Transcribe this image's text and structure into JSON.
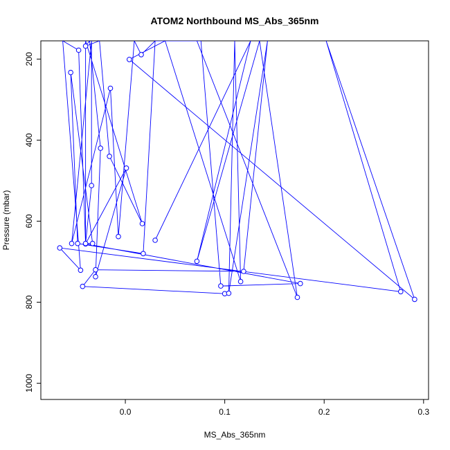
{
  "chart_data": {
    "type": "line",
    "title": "ATOM2 Northbound MS_Abs_365nm",
    "xlabel": "MS_Abs_365nm",
    "ylabel": "Pressure (mbar)",
    "xlim": [
      -0.085,
      0.305
    ],
    "ylim": [
      1040,
      155
    ],
    "y_reversed": true,
    "grid": false,
    "series_color": "#0000ff",
    "xticks": [
      {
        "value": 0.0,
        "label": "0.0"
      },
      {
        "value": 0.1,
        "label": "0.1"
      },
      {
        "value": 0.2,
        "label": "0.2"
      },
      {
        "value": 0.3,
        "label": "0.3"
      }
    ],
    "yticks": [
      {
        "value": 200,
        "label": "200"
      },
      {
        "value": 400,
        "label": "400"
      },
      {
        "value": 600,
        "label": "600"
      },
      {
        "value": 800,
        "label": "800"
      },
      {
        "value": 1000,
        "label": "1000"
      }
    ],
    "series": [
      {
        "points": [
          {
            "x": 0.1,
            "y": 779
          },
          {
            "x": -0.043,
            "y": 761
          },
          {
            "x": -0.03,
            "y": 720
          },
          {
            "x": 0.119,
            "y": 724
          },
          {
            "x": 0.143,
            "y": 155
          },
          {
            "x": 0.104,
            "y": 778
          },
          {
            "x": 0.11,
            "y": 155
          },
          {
            "x": 0.116,
            "y": 749
          },
          {
            "x": 0.04,
            "y": 155
          },
          {
            "x": 0.004,
            "y": 201
          },
          {
            "x": 0.291,
            "y": 793
          },
          {
            "x": 0.202,
            "y": 155
          },
          {
            "x": 0.277,
            "y": 774
          },
          {
            "x": -0.066,
            "y": 666
          },
          {
            "x": -0.045,
            "y": 721
          },
          {
            "x": -0.063,
            "y": 155
          },
          {
            "x": -0.047,
            "y": 178
          },
          {
            "x": -0.04,
            "y": 656
          },
          {
            "x": 0.001,
            "y": 469
          },
          {
            "x": -0.03,
            "y": 737
          },
          {
            "x": -0.025,
            "y": 420
          },
          {
            "x": -0.036,
            "y": 155
          },
          {
            "x": -0.04,
            "y": 168
          },
          {
            "x": -0.026,
            "y": 155
          },
          {
            "x": -0.016,
            "y": 440
          },
          {
            "x": 0.017,
            "y": 606
          },
          {
            "x": -0.04,
            "y": 155
          },
          {
            "x": -0.04,
            "y": 656
          },
          {
            "x": 0.176,
            "y": 754
          },
          {
            "x": 0.096,
            "y": 760
          },
          {
            "x": 0.076,
            "y": 155
          },
          {
            "x": 0.03,
            "y": 155
          },
          {
            "x": 0.016,
            "y": 189
          },
          {
            "x": 0.009,
            "y": 155
          },
          {
            "x": -0.007,
            "y": 638
          },
          {
            "x": -0.015,
            "y": 272
          },
          {
            "x": -0.054,
            "y": 655
          },
          {
            "x": -0.034,
            "y": 155
          },
          {
            "x": -0.034,
            "y": 512
          },
          {
            "x": -0.04,
            "y": 655
          },
          {
            "x": -0.033,
            "y": 655
          },
          {
            "x": -0.055,
            "y": 233
          },
          {
            "x": -0.048,
            "y": 655
          },
          {
            "x": 0.018,
            "y": 680
          },
          {
            "x": 0.03,
            "y": 155
          },
          {
            "x": 0.072,
            "y": 155
          },
          {
            "x": 0.173,
            "y": 788
          },
          {
            "x": 0.135,
            "y": 155
          },
          {
            "x": 0.072,
            "y": 699
          },
          {
            "x": 0.126,
            "y": 155
          },
          {
            "x": 0.03,
            "y": 647
          }
        ]
      }
    ]
  }
}
